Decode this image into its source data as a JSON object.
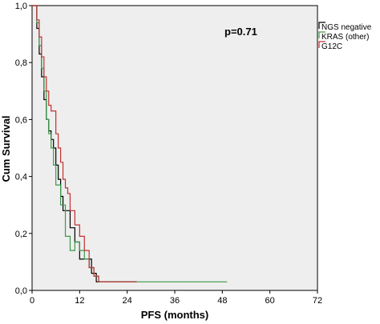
{
  "chart_data": {
    "type": "line",
    "step": true,
    "annotation": "p=0.71",
    "xlabel": "PFS (months)",
    "ylabel": "Cum Survival",
    "xlim": [
      0,
      72
    ],
    "ylim": [
      0,
      1.0
    ],
    "x_ticks": [
      0,
      12,
      24,
      36,
      48,
      60,
      72
    ],
    "y_ticks": [
      0.0,
      0.2,
      0.4,
      0.6,
      0.8,
      1.0
    ],
    "y_tick_labels": [
      "0,0",
      "0,2",
      "0,4",
      "0,6",
      "0,8",
      "1,0"
    ],
    "x_tick_labels": [
      "0",
      "12",
      "24",
      "36",
      "48",
      "60",
      "72"
    ],
    "grid": false,
    "legend_position": "top-right",
    "series": [
      {
        "name": "NGS negative",
        "color": "#000000",
        "x": [
          0,
          1.2,
          1.8,
          2.4,
          3.0,
          3.6,
          4.2,
          4.8,
          5.4,
          6.0,
          6.6,
          7.2,
          7.8,
          8.4,
          9.6,
          10.8,
          12.0,
          12.6,
          13.8,
          15.0,
          16.2,
          17.4,
          26.4
        ],
        "y": [
          1.0,
          0.92,
          0.83,
          0.75,
          0.67,
          0.6,
          0.56,
          0.53,
          0.5,
          0.44,
          0.39,
          0.33,
          0.28,
          0.28,
          0.22,
          0.17,
          0.11,
          0.11,
          0.11,
          0.06,
          0.03,
          0.03,
          0.03
        ]
      },
      {
        "name": "KRAS (other)",
        "color": "#3a9a4a",
        "x": [
          0,
          1.2,
          1.8,
          2.4,
          3.0,
          3.6,
          4.2,
          4.8,
          5.4,
          6.0,
          7.2,
          8.4,
          9.6,
          10.8,
          12.0,
          13.2,
          14.4,
          15.6,
          16.8,
          49.2
        ],
        "y": [
          1.0,
          0.94,
          0.86,
          0.78,
          0.7,
          0.6,
          0.55,
          0.5,
          0.44,
          0.37,
          0.3,
          0.19,
          0.14,
          0.17,
          0.14,
          0.11,
          0.08,
          0.05,
          0.03,
          0.03
        ]
      },
      {
        "name": "G12C",
        "color": "#c03030",
        "x": [
          0,
          1.2,
          1.8,
          2.4,
          3.0,
          3.6,
          4.2,
          4.8,
          6.0,
          6.6,
          7.2,
          7.8,
          8.4,
          9.0,
          9.6,
          10.8,
          12.0,
          13.2,
          14.4,
          15.6,
          16.8,
          26.4
        ],
        "y": [
          1.0,
          0.95,
          0.89,
          0.82,
          0.75,
          0.7,
          0.65,
          0.63,
          0.55,
          0.5,
          0.45,
          0.39,
          0.36,
          0.34,
          0.28,
          0.23,
          0.19,
          0.14,
          0.08,
          0.05,
          0.03,
          0.03
        ]
      }
    ]
  }
}
